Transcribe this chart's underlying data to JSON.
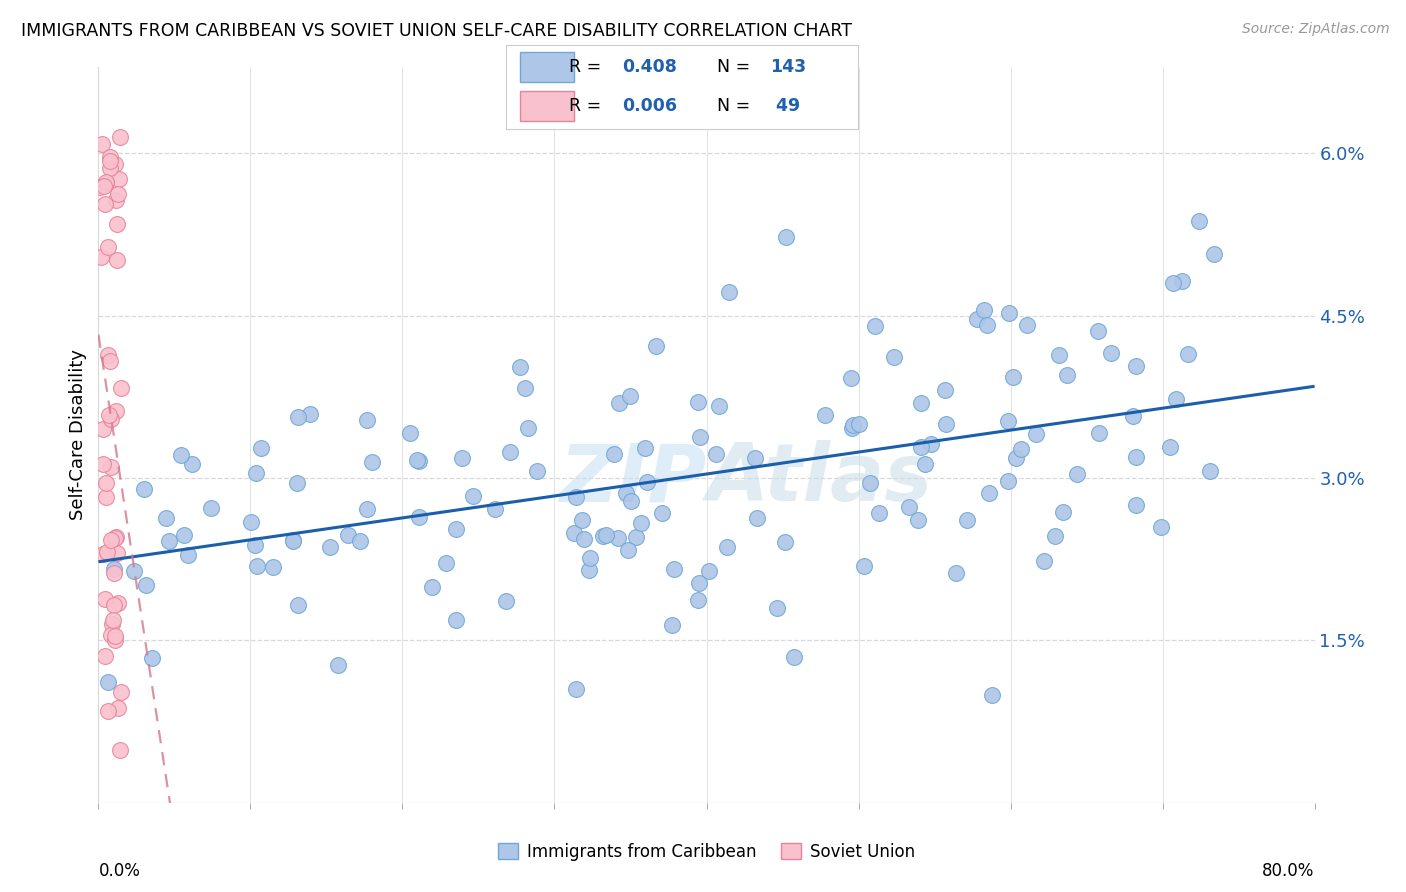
{
  "title": "IMMIGRANTS FROM CARIBBEAN VS SOVIET UNION SELF-CARE DISABILITY CORRELATION CHART",
  "source": "Source: ZipAtlas.com",
  "ylabel": "Self-Care Disability",
  "ytick_values": [
    0.015,
    0.03,
    0.045,
    0.06
  ],
  "ytick_labels": [
    "1.5%",
    "3.0%",
    "4.5%",
    "6.0%"
  ],
  "xlim": [
    0.0,
    0.8
  ],
  "ylim": [
    0.0,
    0.068
  ],
  "caribbean_color": "#aec6e8",
  "caribbean_edge": "#6fa8d6",
  "soviet_color": "#f9c0ce",
  "soviet_edge": "#e8849a",
  "line_caribbean_color": "#1b5faa",
  "line_soviet_color": "#d4778a",
  "R_caribbean": 0.408,
  "N_caribbean": 143,
  "R_soviet": 0.006,
  "N_soviet": 49,
  "watermark": "ZIPAtlas",
  "grid_color": "#d8d8d8",
  "xtick_positions": [
    0.0,
    0.1,
    0.2,
    0.3,
    0.4,
    0.5,
    0.6,
    0.7,
    0.8
  ],
  "legend_text_color": "#2060b0"
}
